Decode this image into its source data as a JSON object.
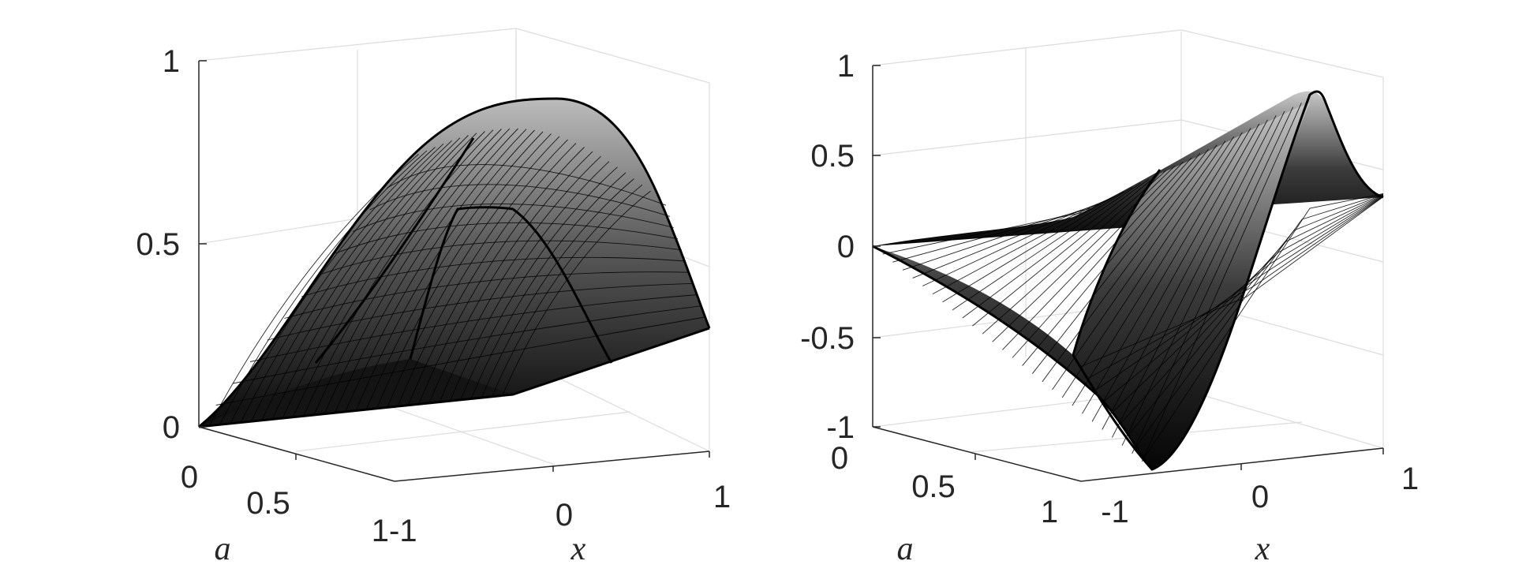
{
  "chart_data": [
    {
      "type": "surface",
      "xlabel": "x",
      "ylabel": "a",
      "zlabel": "",
      "xlim": [
        -1,
        1
      ],
      "ylim": [
        0,
        1
      ],
      "zlim": [
        0,
        1
      ],
      "x_ticks": [
        "-1",
        "0",
        "1"
      ],
      "y_ticks": [
        "0",
        "0.5",
        "1"
      ],
      "z_ticks": [
        "0",
        "0.5",
        "1"
      ],
      "grid": true,
      "colormap": "gray",
      "surface_samples": {
        "x": [
          -1,
          -0.5,
          0,
          0.5,
          1
        ],
        "a": [
          0,
          0.5,
          1
        ],
        "z_at_a0": [
          0,
          0,
          0,
          0,
          0
        ],
        "z_at_a0_5": [
          0.08,
          0.31,
          0.47,
          0.31,
          0.08
        ],
        "z_at_a1": [
          0.17,
          0.62,
          0.97,
          0.62,
          0.17
        ]
      }
    },
    {
      "type": "surface",
      "xlabel": "x",
      "ylabel": "a",
      "zlabel": "",
      "xlim": [
        -1,
        1
      ],
      "ylim": [
        0,
        1
      ],
      "zlim": [
        -1,
        1
      ],
      "x_ticks": [
        "-1",
        "0",
        "1"
      ],
      "y_ticks": [
        "0",
        "0.5",
        "1"
      ],
      "z_ticks": [
        "-1",
        "-0.5",
        "0",
        "0.5",
        "1"
      ],
      "grid": true,
      "colormap": "gray",
      "surface_samples": {
        "x": [
          -1,
          -0.5,
          0,
          0.5,
          1
        ],
        "a": [
          0,
          0.5,
          1
        ],
        "z_at_a0": [
          0,
          0,
          0,
          0,
          0
        ],
        "z_at_a0_5": [
          0.23,
          0.34,
          0,
          -0.34,
          -0.23
        ],
        "z_at_a1": [
          0.48,
          0.7,
          0,
          -0.7,
          -0.48
        ]
      }
    }
  ]
}
